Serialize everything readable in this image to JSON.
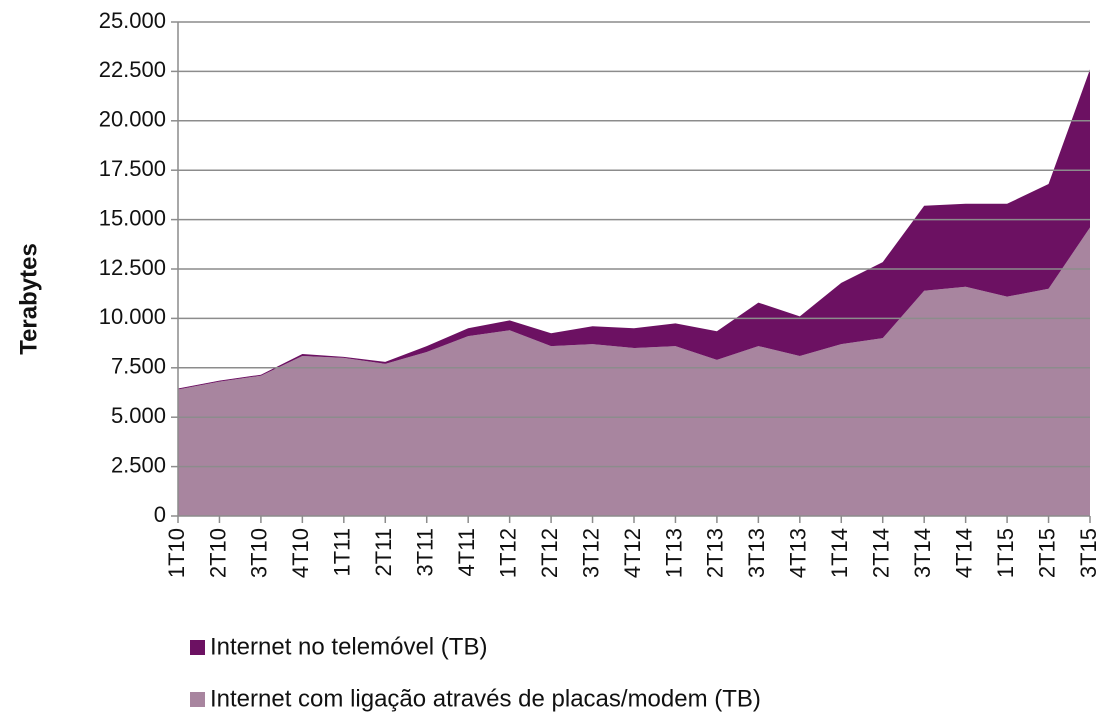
{
  "chart_data": {
    "type": "stacked_area",
    "y_label": "Terabytes",
    "categories": [
      "1T10",
      "2T10",
      "3T10",
      "4T10",
      "1T11",
      "2T11",
      "3T11",
      "4T11",
      "1T12",
      "2T12",
      "3T12",
      "4T12",
      "1T13",
      "2T13",
      "3T13",
      "4T13",
      "1T14",
      "2T14",
      "3T14",
      "4T14",
      "1T15",
      "2T15",
      "3T15"
    ],
    "series": [
      {
        "name": "Internet com ligação através de placas/modem (TB)",
        "color": "#a8859f",
        "values": [
          6400,
          6800,
          7100,
          8100,
          8000,
          7700,
          8300,
          9100,
          9400,
          8600,
          8700,
          8500,
          8600,
          7900,
          8600,
          8100,
          8700,
          9000,
          11400,
          11600,
          11100,
          11500,
          14600
        ]
      },
      {
        "name": "Internet no telemóvel (TB)",
        "color": "#6c1162",
        "values": [
          50,
          50,
          50,
          100,
          50,
          100,
          300,
          400,
          500,
          650,
          900,
          1000,
          1150,
          1450,
          2200,
          2000,
          3100,
          3850,
          4300,
          4200,
          4700,
          5300,
          8000
        ]
      }
    ],
    "ylim": [
      0,
      25000
    ],
    "yticks": [
      0,
      {
        "value": 2500,
        "label": "2.500"
      },
      {
        "value": 5000,
        "label": "5.000"
      },
      {
        "value": 7500,
        "label": "7.500"
      },
      {
        "value": 10000,
        "label": "10.000"
      },
      {
        "value": 12500,
        "label": "12.500"
      },
      {
        "value": 15000,
        "label": "15.000"
      },
      {
        "value": 17500,
        "label": "17.500"
      },
      {
        "value": 20000,
        "label": "20.000"
      },
      {
        "value": 22500,
        "label": "22.500"
      },
      {
        "value": 25000,
        "label": "25.000"
      }
    ],
    "grid": true,
    "legend": "bottom"
  }
}
